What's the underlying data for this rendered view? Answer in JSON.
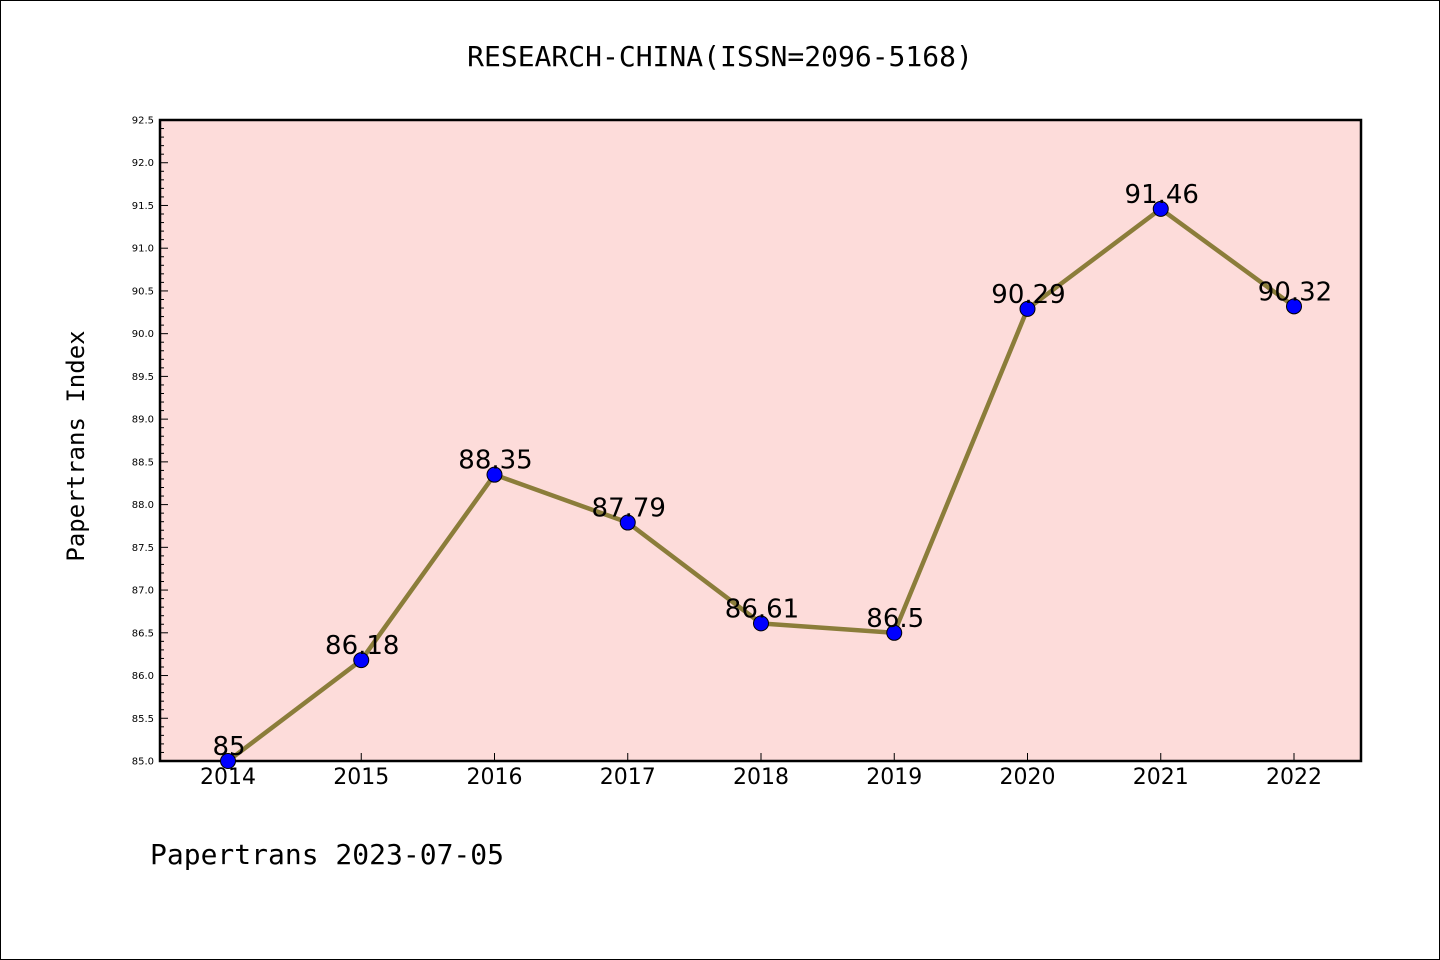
{
  "chart_data": {
    "type": "line",
    "title": "RESEARCH-CHINA(ISSN=2096-5168)",
    "ylabel": "Papertrans Index",
    "xlabel": "",
    "x": [
      "2014",
      "2015",
      "2016",
      "2017",
      "2018",
      "2019",
      "2020",
      "2021",
      "2022"
    ],
    "series": [
      {
        "values": [
          85,
          86.18,
          88.35,
          87.79,
          86.61,
          86.5,
          90.29,
          91.46,
          90.32
        ]
      }
    ],
    "data_labels": [
      "85",
      "86.18",
      "88.35",
      "87.79",
      "86.61",
      "86.5",
      "90.29",
      "91.46",
      "90.32"
    ],
    "yticks": [
      "85.0",
      "85.5",
      "86.0",
      "86.5",
      "87.0",
      "87.5",
      "88.0",
      "88.5",
      "89.0",
      "89.5",
      "90.0",
      "90.5",
      "91.0",
      "91.5",
      "92.0",
      "92.5"
    ],
    "ylim": [
      85.0,
      92.5
    ],
    "grid": false,
    "colors": {
      "background": "#fddcda",
      "line": "#8b7d3a",
      "marker": "#0000ff"
    }
  },
  "footer": "Papertrans 2023-07-05"
}
